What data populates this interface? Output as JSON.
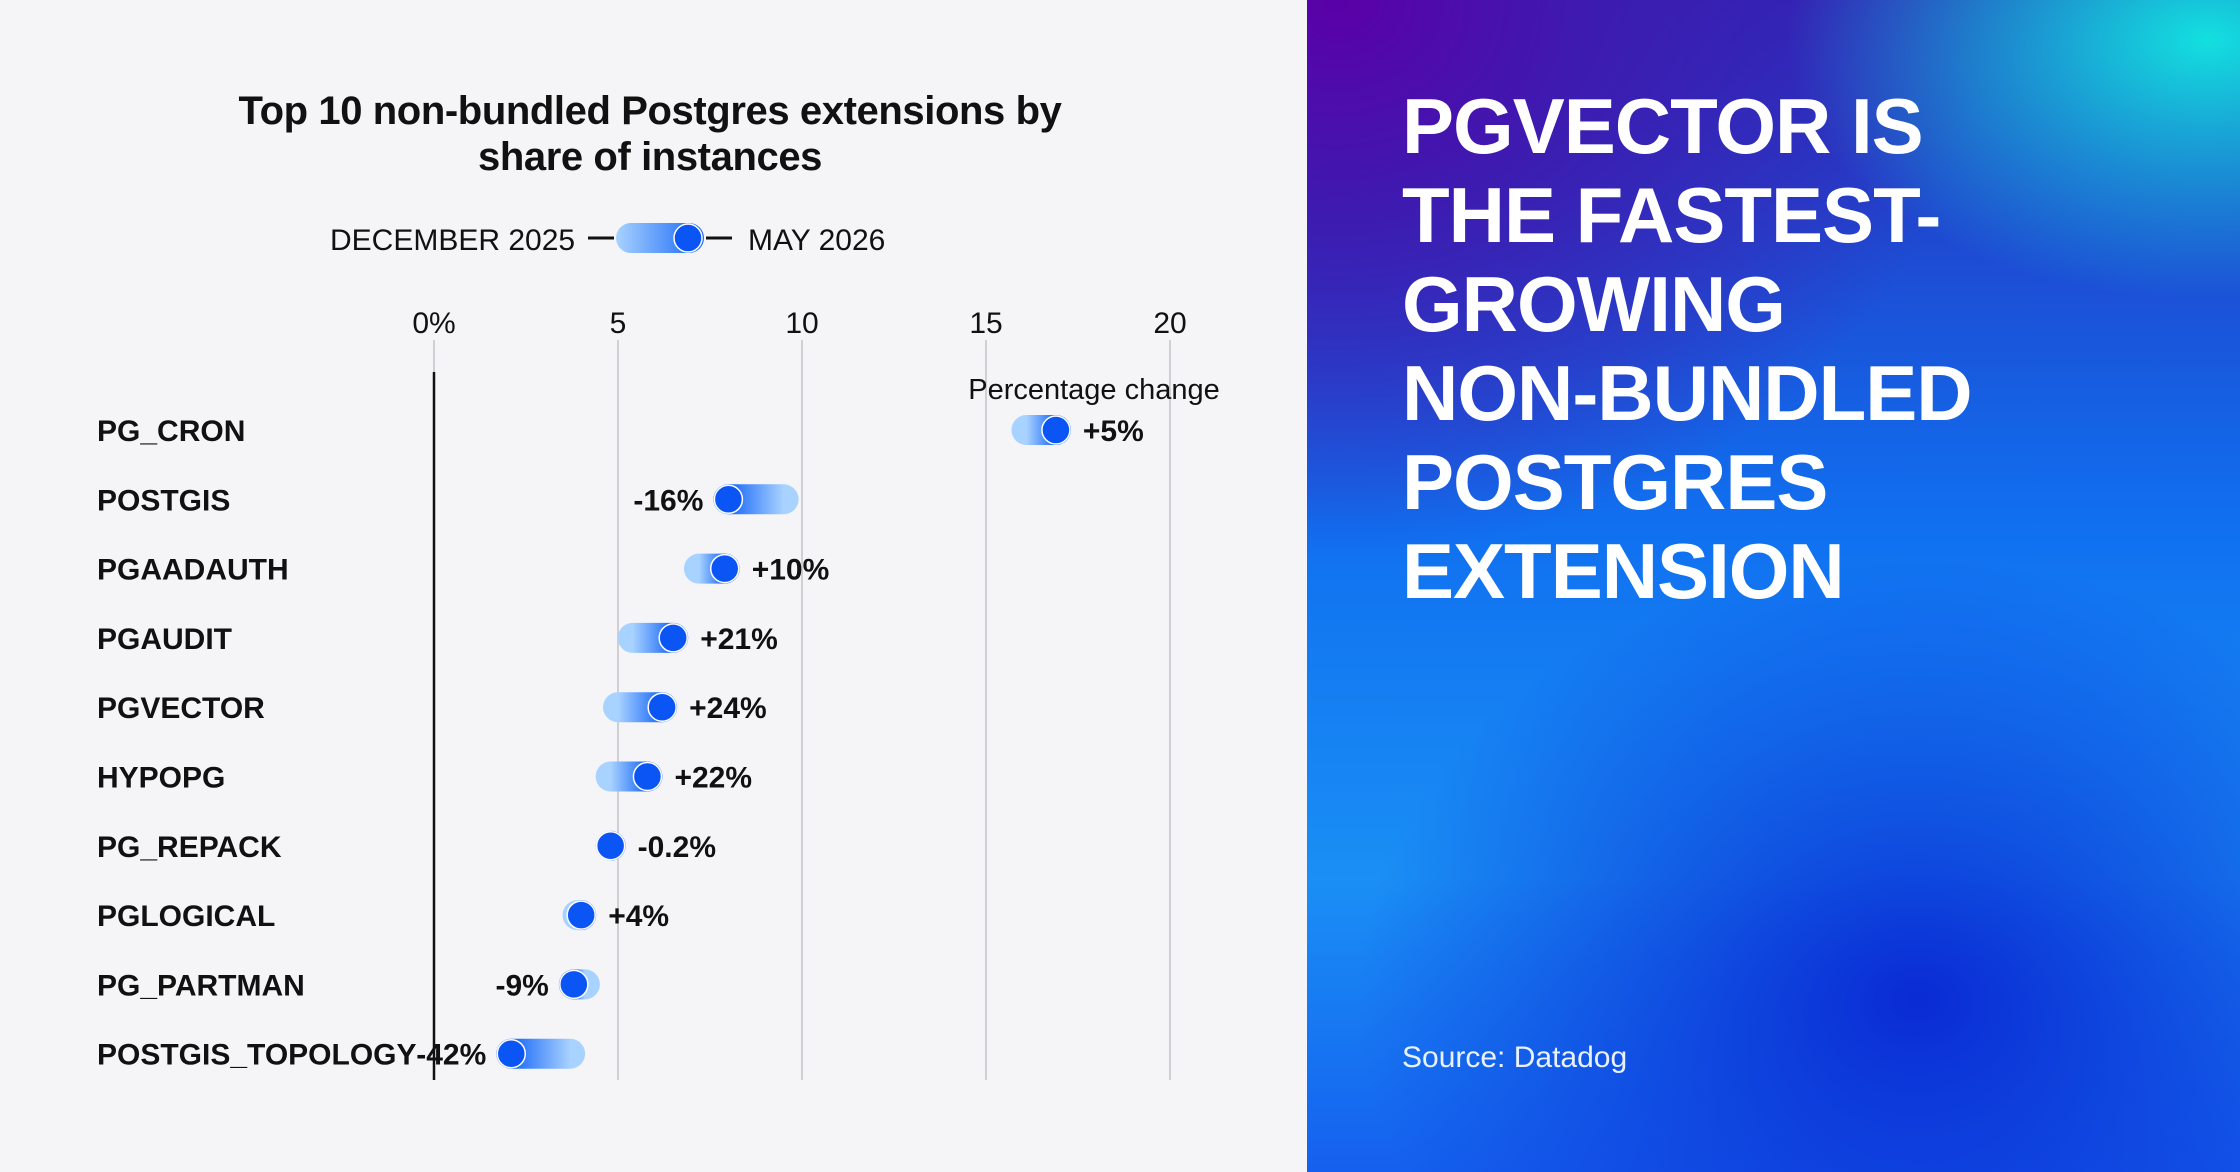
{
  "chart_data": {
    "type": "dumbbell",
    "title": "Top 10 non-bundled Postgres extensions by share of instances",
    "legend": {
      "start_label": "DECEMBER 2025",
      "end_label": "MAY 2026"
    },
    "x_tick_labels": [
      "0%",
      "5",
      "10",
      "15",
      "20"
    ],
    "x_ticks": [
      0,
      5,
      10,
      15,
      20
    ],
    "xlim": [
      0,
      20
    ],
    "annotation": "Percentage change",
    "grid": true,
    "rows": [
      {
        "category": "PG_CRON",
        "december_2025": 16.1,
        "may_2026": 16.9,
        "change": "+5%"
      },
      {
        "category": "POSTGIS",
        "december_2025": 9.5,
        "may_2026": 8.0,
        "change": "-16%"
      },
      {
        "category": "PGAADAUTH",
        "december_2025": 7.2,
        "may_2026": 7.9,
        "change": "+10%"
      },
      {
        "category": "PGAUDIT",
        "december_2025": 5.4,
        "may_2026": 6.5,
        "change": "+21%"
      },
      {
        "category": "PGVECTOR",
        "december_2025": 5.0,
        "may_2026": 6.2,
        "change": "+24%"
      },
      {
        "category": "HYPOPG",
        "december_2025": 4.8,
        "may_2026": 5.8,
        "change": "+22%"
      },
      {
        "category": "PG_REPACK",
        "december_2025": 4.8,
        "may_2026": 4.8,
        "change": "-0.2%"
      },
      {
        "category": "PGLOGICAL",
        "december_2025": 3.9,
        "may_2026": 4.0,
        "change": "+4%"
      },
      {
        "category": "PG_PARTMAN",
        "december_2025": 4.1,
        "may_2026": 3.8,
        "change": "-9%"
      },
      {
        "category": "POSTGIS_TOPOLOGY",
        "december_2025": 3.7,
        "may_2026": 2.1,
        "change": "-42%"
      }
    ],
    "colors": {
      "start": "#8ec5ff",
      "end": "#0b55f5",
      "dot": "#0b55f5",
      "grid": "#cfcfd4",
      "axis": "#111111"
    }
  },
  "panel": {
    "headline_lines": [
      "PGVECTOR IS",
      "THE FASTEST-",
      "GROWING",
      "NON-BUNDLED",
      "POSTGRES",
      "EXTENSION"
    ],
    "source": "Source: Datadog"
  }
}
